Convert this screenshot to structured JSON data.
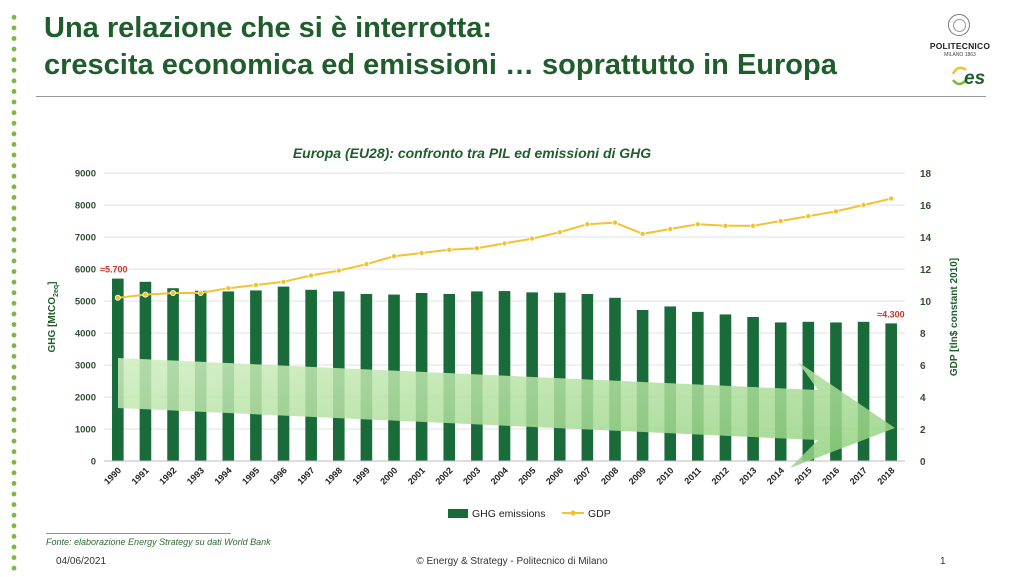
{
  "slide": {
    "title_line1": "Una relazione che si è interrotta:",
    "title_line2": "crescita economica ed emissioni … soprattutto in Europa",
    "logo_name": "POLITECNICO",
    "logo_sub": "MILANO 1863",
    "logo_mark": "es",
    "source": "Fonte: elaborazione Energy Strategy su dati World Bank",
    "footer_date": "04/06/2021",
    "footer_center": "© Energy & Strategy - Politecnico di Milano",
    "page_number": "1"
  },
  "colors": {
    "title": "#1f5e2c",
    "bar": "#1a6b3a",
    "line": "#f2c230",
    "arrow": "#a8dd8a",
    "annotation": "#c0392b",
    "dots": "#78b843"
  },
  "chart_data": {
    "type": "bar",
    "title": "Europa (EU28): confronto tra PIL ed emissioni di GHG",
    "categories": [
      "1990",
      "1991",
      "1992",
      "1993",
      "1994",
      "1995",
      "1996",
      "1997",
      "1998",
      "1999",
      "2000",
      "2001",
      "2002",
      "2003",
      "2004",
      "2005",
      "2006",
      "2007",
      "2008",
      "2009",
      "2010",
      "2011",
      "2012",
      "2013",
      "2014",
      "2015",
      "2016",
      "2017",
      "2018"
    ],
    "series": [
      {
        "name": "GHG emissions",
        "type": "bar",
        "axis": "left",
        "values": [
          5700,
          5600,
          5400,
          5320,
          5300,
          5330,
          5450,
          5350,
          5300,
          5220,
          5200,
          5250,
          5220,
          5300,
          5310,
          5270,
          5260,
          5220,
          5100,
          4720,
          4830,
          4660,
          4580,
          4500,
          4330,
          4350,
          4330,
          4350,
          4300
        ]
      },
      {
        "name": "GDP",
        "type": "line",
        "axis": "right",
        "values": [
          10.2,
          10.4,
          10.5,
          10.5,
          10.8,
          11.0,
          11.2,
          11.6,
          11.9,
          12.3,
          12.8,
          13.0,
          13.2,
          13.3,
          13.6,
          13.9,
          14.3,
          14.8,
          14.9,
          14.2,
          14.5,
          14.8,
          14.7,
          14.7,
          15.0,
          15.3,
          15.6,
          16.0,
          16.4
        ]
      }
    ],
    "ylabel_left": "GHG [MtCO",
    "ylabel_left_sub": "2eq",
    "ylabel_left_end": "]",
    "ylabel_right": "GDP [tln$ constant 2010]",
    "ylim_left": [
      0,
      9000
    ],
    "ylim_right": [
      0,
      18
    ],
    "yticks_left": [
      "0",
      "1000",
      "2000",
      "3000",
      "4000",
      "5000",
      "6000",
      "7000",
      "8000",
      "9000"
    ],
    "yticks_right": [
      "0",
      "2",
      "4",
      "6",
      "8",
      "10",
      "12",
      "14",
      "16",
      "18"
    ],
    "annotations": [
      {
        "text": "≈5.700",
        "category": "1990",
        "value": 5700
      },
      {
        "text": "≈4.300",
        "category": "2018",
        "value": 4300
      }
    ],
    "grid": true,
    "legend_position": "bottom"
  }
}
